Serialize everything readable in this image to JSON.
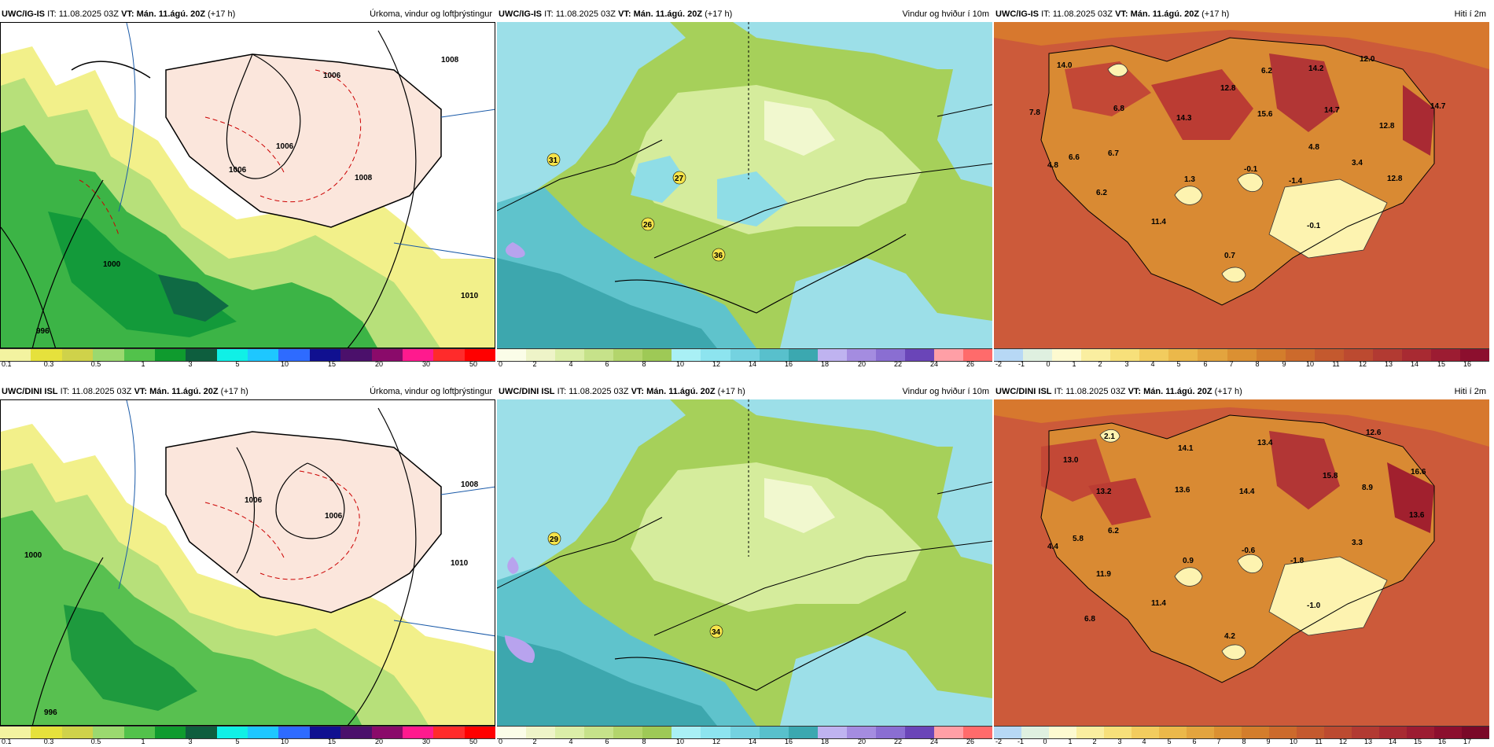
{
  "rows": [
    {
      "panels": [
        {
          "model": "UWC/IG-IS",
          "it_label": "IT:",
          "it": "11.08.2025 03Z",
          "vt_label": "VT:",
          "vt": "Mán. 11.ágú. 20Z",
          "lead": "(+17 h)",
          "title": "Úrkoma, vindur og loftþrýstingur",
          "type": "precip",
          "isobars": [
            "1006",
            "1006",
            "1006",
            "1008",
            "1008",
            "1010",
            "1000",
            "996"
          ]
        },
        {
          "model": "UWC/IG-IS",
          "it_label": "IT:",
          "it": "11.08.2025 03Z",
          "vt_label": "VT:",
          "vt": "Mán. 11.ágú. 20Z",
          "lead": "(+17 h)",
          "title": "Vindur og hviður í 10m",
          "type": "wind",
          "gusts": [
            "31",
            "27",
            "26",
            "36"
          ]
        },
        {
          "model": "UWC/IG-IS",
          "it_label": "IT:",
          "it": "11.08.2025 03Z",
          "vt_label": "VT:",
          "vt": "Mán. 11.ágú. 20Z",
          "lead": "(+17 h)",
          "title": "Hiti í 2m",
          "type": "temp",
          "temps": [
            "14.0",
            "7.8",
            "6.8",
            "14.3",
            "12.8",
            "6.2",
            "14.2",
            "12.0",
            "15.6",
            "14.7",
            "14.7",
            "12.8",
            "4.8",
            "6.6",
            "6.7",
            "4.8",
            "3.4",
            "1.3",
            "-0.1",
            "-1.4",
            "12.8",
            "6.2",
            "11.4",
            "-0.1",
            "0.7"
          ]
        }
      ]
    },
    {
      "panels": [
        {
          "model": "UWC/DINI ISL",
          "it_label": "IT:",
          "it": "11.08.2025 03Z",
          "vt_label": "VT:",
          "vt": "Mán. 11.ágú. 20Z",
          "lead": "(+17 h)",
          "title": "Úrkoma, vindur og loftþrýstingur",
          "type": "precip",
          "isobars": [
            "1006",
            "1006",
            "1008",
            "1010",
            "1000",
            "996"
          ]
        },
        {
          "model": "UWC/DINI ISL",
          "it_label": "IT:",
          "it": "11.08.2025 03Z",
          "vt_label": "VT:",
          "vt": "Mán. 11.ágú. 20Z",
          "lead": "(+17 h)",
          "title": "Vindur og hviður í 10m",
          "type": "wind",
          "gusts": [
            "29",
            "34"
          ]
        },
        {
          "model": "UWC/DINI ISL",
          "it_label": "IT:",
          "it": "11.08.2025 03Z",
          "vt_label": "VT:",
          "vt": "Mán. 11.ágú. 20Z",
          "lead": "(+17 h)",
          "title": "Hiti í 2m",
          "type": "temp",
          "temps": [
            "2.1",
            "13.0",
            "14.1",
            "13.4",
            "12.6",
            "15.8",
            "16.6",
            "13.2",
            "13.6",
            "14.4",
            "8.9",
            "13.6",
            "5.8",
            "6.2",
            "4.4",
            "0.9",
            "-0.6",
            "-1.8",
            "3.3",
            "11.9",
            "11.4",
            "6.8",
            "-1.0",
            "4.2"
          ]
        }
      ]
    }
  ],
  "legends": {
    "precip": {
      "colors": [
        "#f3f3a0",
        "#e6e13c",
        "#cfd24a",
        "#9bd96f",
        "#52c24b",
        "#0f9b2e",
        "#0e5e3e",
        "#10f0e6",
        "#1ec7ff",
        "#2e6bff",
        "#101090",
        "#4b106b",
        "#8a0a6a",
        "#ff1a8e",
        "#ff2b2b",
        "#ff0000"
      ],
      "ticks": [
        "0.1",
        "0.3",
        "0.5",
        "1",
        "3",
        "5",
        "10",
        "15",
        "20",
        "30",
        "50"
      ]
    },
    "wind": {
      "colors": [
        "#fbfde8",
        "#eef4c8",
        "#dbeea8",
        "#c6e28a",
        "#b3d56c",
        "#9ec956",
        "#a9f0f5",
        "#8de4ef",
        "#74d2e0",
        "#58c0cc",
        "#3ba8b0",
        "#bfb3f0",
        "#a48ce0",
        "#8a6ed2",
        "#6a45b8",
        "#ff9fa6",
        "#ff6b6b"
      ],
      "ticks": [
        "0",
        "2",
        "4",
        "6",
        "8",
        "10",
        "12",
        "14",
        "16",
        "18",
        "20",
        "22",
        "24",
        "26"
      ]
    },
    "temp_top": {
      "colors": [
        "#b7d8f5",
        "#dff0e0",
        "#fdfad0",
        "#faeea0",
        "#f7e07a",
        "#f2cc5e",
        "#ebb84a",
        "#e3a43e",
        "#db9032",
        "#d37d2c",
        "#cc6a2c",
        "#c4592e",
        "#bc4a30",
        "#b23a32",
        "#a82a32",
        "#9c1c32",
        "#8c0f2e"
      ],
      "ticks": [
        "-2",
        "-1",
        "0",
        "1",
        "2",
        "3",
        "4",
        "5",
        "6",
        "7",
        "8",
        "9",
        "10",
        "11",
        "12",
        "13",
        "14",
        "15",
        "16"
      ]
    },
    "temp_bottom": {
      "colors": [
        "#b7d8f5",
        "#dff0e0",
        "#fdfad0",
        "#faeea0",
        "#f7e07a",
        "#f2cc5e",
        "#ebb84a",
        "#e3a43e",
        "#db9032",
        "#d37d2c",
        "#cc6a2c",
        "#c4592e",
        "#bc4a30",
        "#b23a32",
        "#a82a32",
        "#9c1c32",
        "#8c0f2e",
        "#7a0828"
      ],
      "ticks": [
        "-2",
        "-1",
        "0",
        "1",
        "2",
        "3",
        "4",
        "5",
        "6",
        "7",
        "8",
        "9",
        "10",
        "11",
        "12",
        "13",
        "14",
        "15",
        "16",
        "17"
      ]
    }
  }
}
